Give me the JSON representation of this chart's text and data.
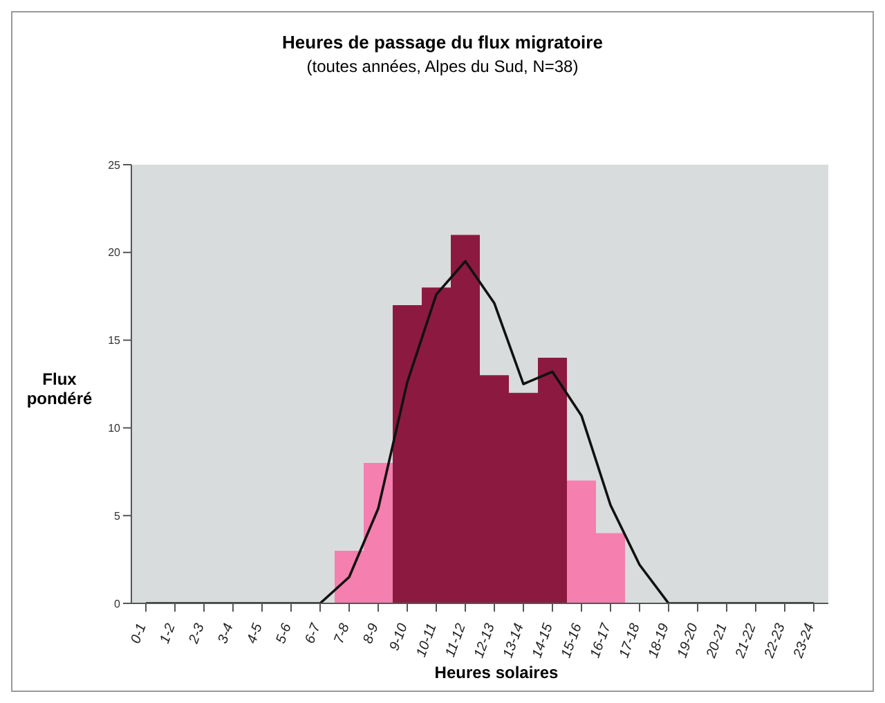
{
  "chart_data": {
    "type": "bar",
    "title": "Heures de passage du flux migratoire",
    "subtitle": "(toutes années, Alpes du Sud, N=38)",
    "xlabel": "Heures solaires",
    "ylabel": "Flux pondéré",
    "categories": [
      "0-1",
      "1-2",
      "2-3",
      "3-4",
      "4-5",
      "5-6",
      "6-7",
      "7-8",
      "8-9",
      "9-10",
      "10-11",
      "11-12",
      "12-13",
      "13-14",
      "14-15",
      "15-16",
      "16-17",
      "17-18",
      "18-19",
      "19-20",
      "20-21",
      "21-22",
      "22-23",
      "23-24"
    ],
    "series": [
      {
        "values": [
          0,
          0,
          0,
          0,
          0,
          0,
          0,
          3,
          8,
          17,
          18,
          21,
          13,
          12,
          14,
          7,
          4,
          0,
          0,
          0,
          0,
          0,
          0,
          0
        ],
        "colors": [
          "#f57fae",
          "#f57fae",
          "#f57fae",
          "#f57fae",
          "#f57fae",
          "#f57fae",
          "#f57fae",
          "#f57fae",
          "#f57fae",
          "#8c1a40",
          "#8c1a40",
          "#8c1a40",
          "#8c1a40",
          "#8c1a40",
          "#8c1a40",
          "#f57fae",
          "#f57fae",
          "#f57fae",
          "#f57fae",
          "#f57fae",
          "#f57fae",
          "#f57fae",
          "#f57fae",
          "#f57fae"
        ]
      },
      {
        "type": "line",
        "color": "#111111",
        "values": [
          0,
          0,
          0,
          0,
          0,
          0,
          0,
          1.5,
          5.4,
          12.6,
          17.6,
          19.5,
          17.1,
          12.5,
          13.2,
          10.7,
          5.6,
          2.2,
          0,
          0,
          0,
          0,
          0,
          0
        ]
      }
    ],
    "ylim": [
      0,
      25
    ],
    "yticks": [
      0,
      5,
      10,
      15,
      20,
      25
    ],
    "grid": false,
    "legend": false,
    "marker": "none",
    "line_style": "solid"
  }
}
